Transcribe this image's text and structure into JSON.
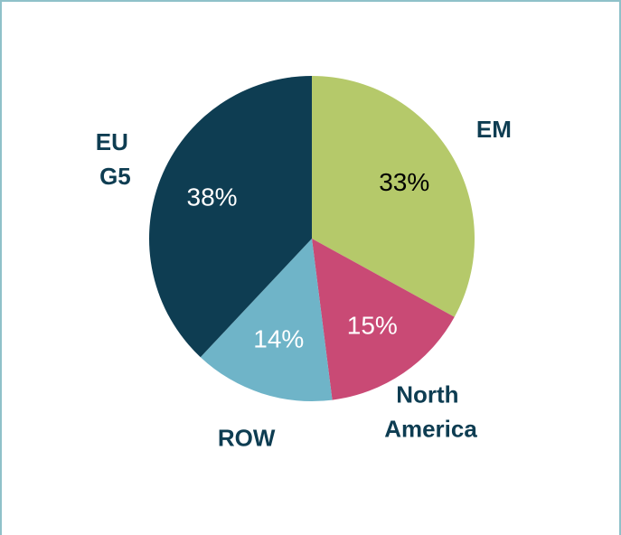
{
  "chart_data": {
    "type": "pie",
    "categories": [
      "EM",
      "North America",
      "ROW",
      "EU G5"
    ],
    "values": [
      33,
      15,
      14,
      38
    ],
    "value_labels": [
      "33%",
      "15%",
      "14%",
      "38%"
    ],
    "colors": [
      "#b5c96a",
      "#c94a75",
      "#6fb4c8",
      "#0e3d52"
    ],
    "value_label_colors": [
      "#000000",
      "#ffffff",
      "#ffffff",
      "#ffffff"
    ]
  }
}
